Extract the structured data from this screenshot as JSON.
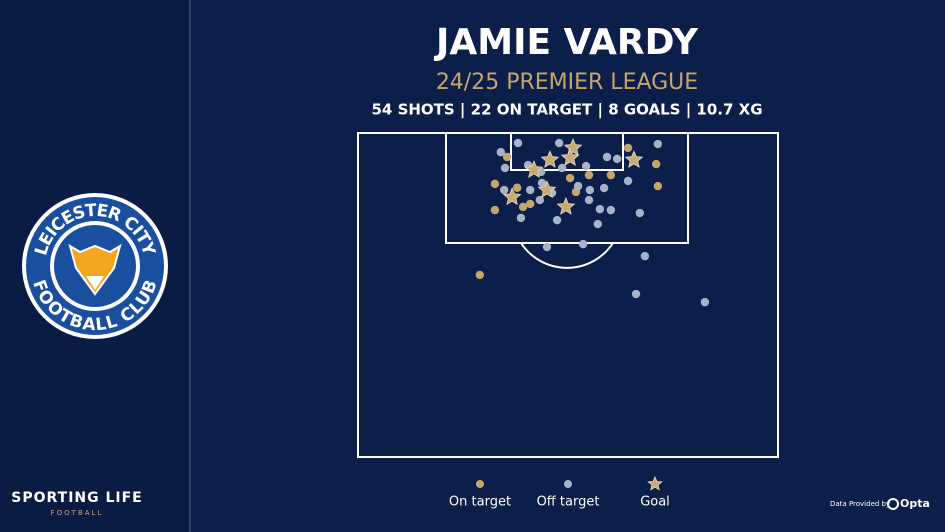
{
  "header": {
    "brand": "SPORTING LIFE",
    "brand_sub": "FOOTBALL",
    "data_credit": "Data Provided by",
    "data_provider": "Opta"
  },
  "badge": {
    "top_text": "LEICESTER CITY",
    "bottom_text": "FOOTBALL CLUB"
  },
  "chart_data": {
    "type": "scatter",
    "title": "JAMIE VARDY",
    "subtitle": "24/25 PREMIER LEAGUE",
    "stats_line": "54 SHOTS | 22 ON TARGET | 8 GOALS | 10.7 XG",
    "xlim": [
      0,
      100
    ],
    "ylim": [
      0,
      100
    ],
    "series": [
      {
        "name": "On target",
        "color": "#c4a56e",
        "marker": "circle",
        "x": [
          35.5,
          64.3,
          71.0,
          32.6,
          37.9,
          41.0,
          32.6,
          39.3,
          50.5,
          51.9,
          55.0,
          60.2,
          71.4,
          29.0
        ],
        "values": [
          7.4,
          4.6,
          9.6,
          15.7,
          16.9,
          21.9,
          23.8,
          22.8,
          13.9,
          18.2,
          13.0,
          13.0,
          16.4,
          43.8
        ]
      },
      {
        "name": "Off target",
        "color": "#a9b3c8",
        "marker": "circle",
        "x": [
          34.0,
          38.1,
          47.9,
          59.3,
          61.7,
          71.4,
          35.0,
          40.5,
          43.6,
          48.6,
          54.3,
          64.3,
          43.8,
          46.2,
          52.4,
          55.2,
          58.6,
          55.0,
          57.6,
          60.2,
          41.0,
          43.3,
          34.8,
          38.8,
          47.4,
          57.1,
          67.1,
          45.0,
          53.6,
          68.3,
          66.2,
          82.6
        ],
        "values": [
          5.9,
          3.1,
          3.1,
          7.4,
          8.0,
          3.4,
          10.8,
          9.9,
          12.0,
          10.8,
          10.2,
          14.8,
          15.4,
          18.5,
          16.4,
          17.6,
          17.0,
          20.7,
          23.5,
          23.8,
          17.6,
          20.7,
          17.6,
          26.2,
          26.9,
          28.1,
          24.7,
          35.2,
          34.3,
          38.0,
          49.7,
          52.2
        ]
      },
      {
        "name": "Goal",
        "color": "#c8aa72",
        "marker": "star",
        "x": [
          51.2,
          50.5,
          45.7,
          41.9,
          65.7,
          45.0,
          36.7,
          49.5
        ],
        "values": [
          4.6,
          7.7,
          8.3,
          11.4,
          8.3,
          17.6,
          19.8,
          22.8
        ]
      }
    ]
  }
}
